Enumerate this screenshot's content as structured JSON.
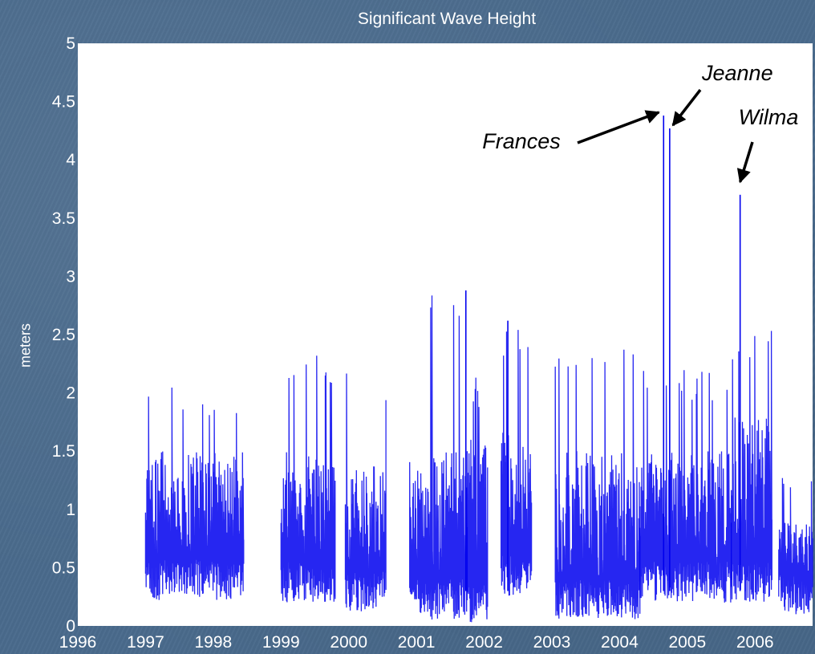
{
  "chart_data": {
    "type": "line",
    "title": "Significant Wave Height",
    "xlabel": "",
    "ylabel": "meters",
    "xlim": [
      1996,
      2006.85
    ],
    "ylim": [
      0,
      5
    ],
    "x_ticks": [
      "1996",
      "1997",
      "1998",
      "1999",
      "2000",
      "2001",
      "2002",
      "2003",
      "2004",
      "2005",
      "2006"
    ],
    "y_ticks": [
      "0",
      "0.5",
      "1",
      "1.5",
      "2",
      "2.5",
      "3",
      "3.5",
      "4",
      "4.5",
      "5"
    ],
    "grid": false,
    "series": [
      {
        "name": "",
        "color": "#0000ee",
        "segments": [
          {
            "start": 1997.0,
            "end": 1998.45,
            "base": 0.22,
            "typical_peak": 1.3,
            "max": 2.1
          },
          {
            "start": 1999.0,
            "end": 1999.8,
            "base": 0.2,
            "typical_peak": 1.3,
            "max": 2.33
          },
          {
            "start": 1999.95,
            "end": 2000.55,
            "base": 0.12,
            "typical_peak": 1.2,
            "max": 2.23
          },
          {
            "start": 2000.9,
            "end": 2001.75,
            "base": 0.05,
            "typical_peak": 1.3,
            "max": 2.88
          },
          {
            "start": 2001.75,
            "end": 2002.05,
            "base": 0.02,
            "typical_peak": 1.4,
            "max": 2.15
          },
          {
            "start": 2002.25,
            "end": 2002.7,
            "base": 0.25,
            "typical_peak": 1.5,
            "max": 2.62
          },
          {
            "start": 2003.05,
            "end": 2004.3,
            "base": 0.05,
            "typical_peak": 1.3,
            "max": 2.4
          },
          {
            "start": 2004.3,
            "end": 2005.65,
            "base": 0.2,
            "typical_peak": 1.3,
            "max": 2.2
          },
          {
            "start": 2005.65,
            "end": 2006.25,
            "base": 0.2,
            "typical_peak": 1.6,
            "max": 2.55
          },
          {
            "start": 2006.35,
            "end": 2006.85,
            "base": 0.1,
            "typical_peak": 0.7,
            "max": 1.28
          }
        ],
        "peaks": [
          {
            "x": 2004.65,
            "y": 4.38
          },
          {
            "x": 2004.74,
            "y": 4.27
          },
          {
            "x": 2005.78,
            "y": 3.7
          },
          {
            "x": 2001.73,
            "y": 2.88
          },
          {
            "x": 2002.35,
            "y": 2.62
          }
        ]
      }
    ],
    "annotations": [
      {
        "text": "Frances",
        "x": 2004.65,
        "y": 4.38
      },
      {
        "text": "Jeanne",
        "x": 2004.74,
        "y": 4.27
      },
      {
        "text": "Wilma",
        "x": 2005.78,
        "y": 3.7
      }
    ]
  }
}
